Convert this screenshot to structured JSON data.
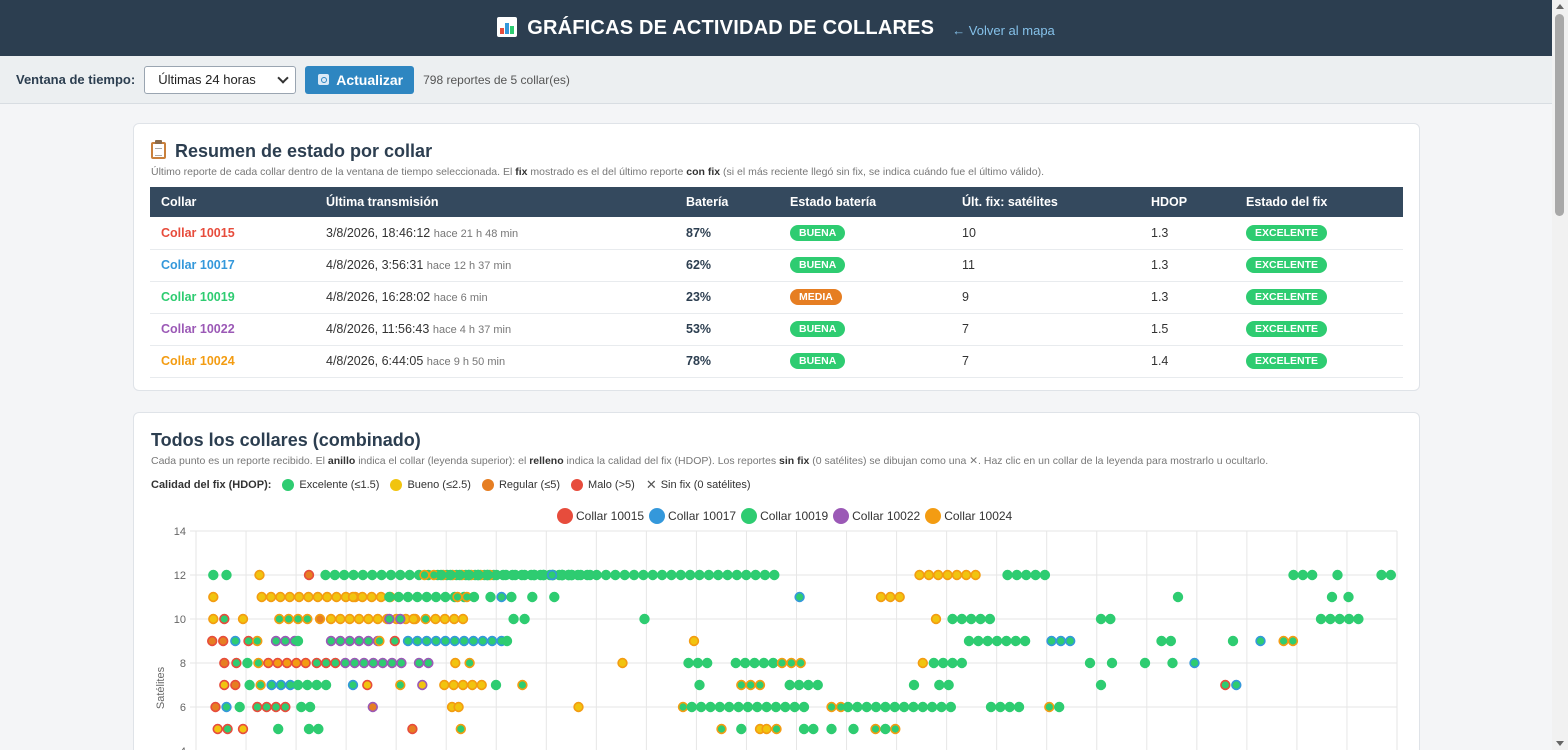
{
  "header": {
    "title": "GRÁFICAS DE ACTIVIDAD DE COLLARES",
    "back_link": "← Volver al mapa"
  },
  "toolbar": {
    "window_label": "Ventana de tiempo:",
    "window_value": "Últimas 24 horas",
    "refresh_label": "Actualizar",
    "report_count": "798 reportes de 5 collar(es)"
  },
  "summary": {
    "title": "Resumen de estado por collar",
    "desc_parts": [
      "Último reporte de cada collar dentro de la ventana de tiempo seleccionada. El ",
      "fix",
      " mostrado es el del último reporte ",
      "con fix",
      " (si el más reciente llegó sin fix, se indica cuándo fue el último válido)."
    ],
    "columns": [
      "Collar",
      "Última transmisión",
      "Batería",
      "Estado batería",
      "Últ. fix: satélites",
      "HDOP",
      "Estado del fix"
    ],
    "rows": [
      {
        "collar": "Collar 10015",
        "color": "#e74c3c",
        "time": "3/8/2026, 18:46:12",
        "ago": "hace 21 h 48 min",
        "battery": "87%",
        "battery_state": "BUENA",
        "battery_color": "#2ecc71",
        "sats": "10",
        "hdop": "1.3",
        "fix_state": "EXCELENTE"
      },
      {
        "collar": "Collar 10017",
        "color": "#3498db",
        "time": "4/8/2026, 3:56:31",
        "ago": "hace 12 h 37 min",
        "battery": "62%",
        "battery_state": "BUENA",
        "battery_color": "#2ecc71",
        "sats": "11",
        "hdop": "1.3",
        "fix_state": "EXCELENTE"
      },
      {
        "collar": "Collar 10019",
        "color": "#2ecc71",
        "time": "4/8/2026, 16:28:02",
        "ago": "hace 6 min",
        "battery": "23%",
        "battery_state": "MEDIA",
        "battery_color": "#e67e22",
        "sats": "9",
        "hdop": "1.3",
        "fix_state": "EXCELENTE"
      },
      {
        "collar": "Collar 10022",
        "color": "#9b59b6",
        "time": "4/8/2026, 11:56:43",
        "ago": "hace 4 h 37 min",
        "battery": "53%",
        "battery_state": "BUENA",
        "battery_color": "#2ecc71",
        "sats": "7",
        "hdop": "1.5",
        "fix_state": "EXCELENTE"
      },
      {
        "collar": "Collar 10024",
        "color": "#f39c12",
        "time": "4/8/2026, 6:44:05",
        "ago": "hace 9 h 50 min",
        "battery": "78%",
        "battery_state": "BUENA",
        "battery_color": "#2ecc71",
        "sats": "7",
        "hdop": "1.4",
        "fix_state": "EXCELENTE"
      }
    ],
    "fix_color": "#2ecc71"
  },
  "combined": {
    "title": "Todos los collares (combinado)",
    "desc_parts": [
      "Cada punto es un reporte recibido. El ",
      "anillo",
      " indica el collar (leyenda superior): el ",
      "relleno",
      " indica la calidad del fix (HDOP). Los reportes ",
      "sin fix",
      " (0 satélites) se dibujan como una ✕. Haz clic en un collar de la leyenda para mostrarlo u ocultarlo."
    ],
    "quality_label": "Calidad del fix (HDOP):",
    "quality_items": [
      {
        "label": "Excelente (≤1.5)",
        "color": "#2ecc71"
      },
      {
        "label": "Bueno (≤2.5)",
        "color": "#f1c40f"
      },
      {
        "label": "Regular (≤5)",
        "color": "#e67e22"
      },
      {
        "label": "Malo (>5)",
        "color": "#e74c3c"
      }
    ],
    "nofix_label": "Sin fix (0 satélites)"
  },
  "chart_data": {
    "type": "scatter",
    "ylabel": "Satélites",
    "y_ticks": [
      4,
      6,
      8,
      10,
      12,
      14
    ],
    "ylim": [
      4,
      14
    ],
    "grid": true,
    "legend_placement": "top-center",
    "series": [
      {
        "name": "Collar 10015",
        "color": "#e74c3c"
      },
      {
        "name": "Collar 10017",
        "color": "#3498db"
      },
      {
        "name": "Collar 10019",
        "color": "#2ecc71"
      },
      {
        "name": "Collar 10022",
        "color": "#9b59b6"
      },
      {
        "name": "Collar 10024",
        "color": "#f39c12"
      }
    ],
    "points": [
      {
        "t": 0.3,
        "y": 12,
        "c": "#2ecc71",
        "f": "#2ecc71"
      },
      {
        "t": 1.5,
        "y": 12,
        "c": "#2ecc71",
        "f": "#2ecc71"
      },
      {
        "t": 4.5,
        "y": 12,
        "c": "#f39c12",
        "f": "#f1c40f"
      },
      {
        "t": 9,
        "y": 12,
        "c": "#e74c3c",
        "f": "#e67e22"
      },
      {
        "t": 10.5,
        "y": 12,
        "r": 48,
        "c": "#2ecc71",
        "f": "#2ecc71"
      },
      {
        "t": 19.5,
        "y": 12,
        "r": 7,
        "c": "#f39c12",
        "f": "#2ecc71"
      },
      {
        "t": 21,
        "y": 12,
        "r": 5,
        "c": "#2ecc71",
        "f": "#2ecc71"
      },
      {
        "t": 23.5,
        "y": 12,
        "r": 13,
        "c": "#2ecc71",
        "f": "#2ecc71"
      },
      {
        "t": 29.5,
        "y": 12,
        "r": 4,
        "c": "#2ecc71",
        "f": "#2ecc71"
      },
      {
        "t": 31.1,
        "y": 12,
        "c": "#3498db",
        "f": "#2ecc71"
      },
      {
        "t": 32,
        "y": 12,
        "c": "#2ecc71",
        "f": "#2ecc71"
      },
      {
        "t": 32.6,
        "y": 12,
        "c": "#2ecc71",
        "f": "#2ecc71"
      },
      {
        "t": 64.5,
        "y": 12,
        "r": 6,
        "c": "#f39c12",
        "f": "#f1c40f"
      },
      {
        "t": 72.5,
        "y": 12,
        "r": 4,
        "c": "#2ecc71",
        "f": "#2ecc71"
      },
      {
        "t": 98.5,
        "y": 12,
        "r": 2,
        "c": "#2ecc71",
        "f": "#2ecc71"
      },
      {
        "t": 102.5,
        "y": 12,
        "c": "#2ecc71",
        "f": "#2ecc71"
      },
      {
        "t": 106.5,
        "y": 12,
        "r": 2,
        "c": "#2ecc71",
        "f": "#2ecc71"
      },
      {
        "t": 110.5,
        "y": 12,
        "r": 2,
        "c": "#2ecc71",
        "f": "#2ecc71"
      },
      {
        "t": 0.3,
        "y": 11,
        "c": "#f39c12",
        "f": "#f1c40f"
      },
      {
        "t": 4.7,
        "y": 11,
        "r": 10,
        "c": "#f39c12",
        "f": "#f1c40f"
      },
      {
        "t": 13,
        "y": 11,
        "r": 4,
        "c": "#f39c12",
        "f": "#f1c40f"
      },
      {
        "t": 16.3,
        "y": 11,
        "r": 8,
        "c": "#2ecc71",
        "f": "#2ecc71"
      },
      {
        "t": 22.5,
        "y": 11,
        "r": 1,
        "c": "#f39c12",
        "f": "#2ecc71"
      },
      {
        "t": 24,
        "y": 11,
        "c": "#2ecc71",
        "f": "#2ecc71"
      },
      {
        "t": 25.5,
        "y": 11,
        "c": "#2ecc71",
        "f": "#2ecc71"
      },
      {
        "t": 26.5,
        "y": 11,
        "c": "#3498db",
        "f": "#2ecc71"
      },
      {
        "t": 27.4,
        "y": 11,
        "c": "#2ecc71",
        "f": "#2ecc71"
      },
      {
        "t": 29.3,
        "y": 11,
        "c": "#2ecc71",
        "f": "#2ecc71"
      },
      {
        "t": 31.3,
        "y": 11,
        "c": "#2ecc71",
        "f": "#2ecc71"
      },
      {
        "t": 53.6,
        "y": 11,
        "c": "#3498db",
        "f": "#2ecc71"
      },
      {
        "t": 61,
        "y": 11,
        "r": 2,
        "c": "#f39c12",
        "f": "#f1c40f"
      },
      {
        "t": 88,
        "y": 11,
        "c": "#2ecc71",
        "f": "#2ecc71"
      },
      {
        "t": 102,
        "y": 11,
        "c": "#2ecc71",
        "f": "#2ecc71"
      },
      {
        "t": 103.5,
        "y": 11,
        "c": "#2ecc71",
        "f": "#2ecc71"
      },
      {
        "t": 111,
        "y": 11,
        "c": "#2ecc71",
        "f": "#2ecc71"
      },
      {
        "t": 0.3,
        "y": 10,
        "c": "#f39c12",
        "f": "#f1c40f"
      },
      {
        "t": 1.3,
        "y": 10,
        "c": "#e74c3c",
        "f": "#2ecc71"
      },
      {
        "t": 3,
        "y": 10,
        "c": "#f39c12",
        "f": "#f1c40f"
      },
      {
        "t": 6.3,
        "y": 10,
        "r": 3,
        "c": "#f39c12",
        "f": "#2ecc71"
      },
      {
        "t": 10,
        "y": 10,
        "c": "#f39c12",
        "f": "#e67e22"
      },
      {
        "t": 11,
        "y": 10,
        "r": 9,
        "c": "#f39c12",
        "f": "#f1c40f"
      },
      {
        "t": 16.3,
        "y": 10,
        "c": "#9b59b6",
        "f": "#2ecc71"
      },
      {
        "t": 17.3,
        "y": 10,
        "c": "#9b59b6",
        "f": "#2ecc71"
      },
      {
        "t": 18.5,
        "y": 10,
        "c": "#f39c12",
        "f": "#f1c40f"
      },
      {
        "t": 19.6,
        "y": 10,
        "c": "#f39c12",
        "f": "#2ecc71"
      },
      {
        "t": 20.5,
        "y": 10,
        "r": 2,
        "c": "#f39c12",
        "f": "#f1c40f"
      },
      {
        "t": 23,
        "y": 10,
        "c": "#f39c12",
        "f": "#f1c40f"
      },
      {
        "t": 27.6,
        "y": 10,
        "c": "#2ecc71",
        "f": "#2ecc71"
      },
      {
        "t": 28.6,
        "y": 10,
        "c": "#2ecc71",
        "f": "#2ecc71"
      },
      {
        "t": 39.5,
        "y": 10,
        "c": "#2ecc71",
        "f": "#2ecc71"
      },
      {
        "t": 66,
        "y": 10,
        "c": "#f39c12",
        "f": "#f1c40f"
      },
      {
        "t": 67.5,
        "y": 10,
        "r": 4,
        "c": "#2ecc71",
        "f": "#2ecc71"
      },
      {
        "t": 81,
        "y": 10,
        "r": 1,
        "c": "#2ecc71",
        "f": "#2ecc71"
      },
      {
        "t": 101,
        "y": 10,
        "r": 4,
        "c": "#2ecc71",
        "f": "#2ecc71"
      },
      {
        "t": 0.2,
        "y": 9,
        "c": "#e74c3c",
        "f": "#e67e22"
      },
      {
        "t": 1.2,
        "y": 9,
        "c": "#e74c3c",
        "f": "#e67e22"
      },
      {
        "t": 2.3,
        "y": 9,
        "c": "#3498db",
        "f": "#2ecc71"
      },
      {
        "t": 3.5,
        "y": 9,
        "c": "#e74c3c",
        "f": "#2ecc71"
      },
      {
        "t": 4.3,
        "y": 9,
        "c": "#f39c12",
        "f": "#2ecc71"
      },
      {
        "t": 6,
        "y": 9,
        "r": 2,
        "c": "#9b59b6",
        "f": "#2ecc71"
      },
      {
        "t": 8,
        "y": 9,
        "c": "#2ecc71",
        "f": "#2ecc71"
      },
      {
        "t": 11,
        "y": 9,
        "r": 5,
        "c": "#9b59b6",
        "f": "#2ecc71"
      },
      {
        "t": 15.4,
        "y": 9,
        "c": "#f39c12",
        "f": "#2ecc71"
      },
      {
        "t": 16.8,
        "y": 9,
        "c": "#e74c3c",
        "f": "#2ecc71"
      },
      {
        "t": 18,
        "y": 9,
        "r": 10,
        "c": "#3498db",
        "f": "#2ecc71"
      },
      {
        "t": 27,
        "y": 9,
        "c": "#2ecc71",
        "f": "#2ecc71"
      },
      {
        "t": 44,
        "y": 9,
        "c": "#f39c12",
        "f": "#f1c40f"
      },
      {
        "t": 69,
        "y": 9,
        "r": 6,
        "c": "#2ecc71",
        "f": "#2ecc71"
      },
      {
        "t": 76.5,
        "y": 9,
        "r": 2,
        "c": "#3498db",
        "f": "#2ecc71"
      },
      {
        "t": 86.5,
        "y": 9,
        "r": 1,
        "c": "#2ecc71",
        "f": "#2ecc71"
      },
      {
        "t": 93,
        "y": 9,
        "c": "#2ecc71",
        "f": "#2ecc71"
      },
      {
        "t": 95.5,
        "y": 9,
        "c": "#3498db",
        "f": "#2ecc71"
      },
      {
        "t": 97.6,
        "y": 9,
        "r": 1,
        "c": "#f39c12",
        "f": "#2ecc71"
      },
      {
        "t": 112,
        "y": 9,
        "c": "#2ecc71",
        "f": "#2ecc71"
      },
      {
        "t": 1.3,
        "y": 8,
        "c": "#e74c3c",
        "f": "#e67e22"
      },
      {
        "t": 2.4,
        "y": 8,
        "c": "#e74c3c",
        "f": "#2ecc71"
      },
      {
        "t": 3.4,
        "y": 8,
        "c": "#2ecc71",
        "f": "#2ecc71"
      },
      {
        "t": 4.4,
        "y": 8,
        "c": "#f39c12",
        "f": "#2ecc71"
      },
      {
        "t": 5.3,
        "y": 8,
        "r": 4,
        "c": "#e74c3c",
        "f": "#f39c12"
      },
      {
        "t": 9.7,
        "y": 8,
        "r": 2,
        "c": "#e74c3c",
        "f": "#2ecc71"
      },
      {
        "t": 12.3,
        "y": 8,
        "r": 6,
        "c": "#9b59b6",
        "f": "#2ecc71"
      },
      {
        "t": 19,
        "y": 8,
        "r": 1,
        "c": "#9b59b6",
        "f": "#2ecc71"
      },
      {
        "t": 22.3,
        "y": 8,
        "c": "#f39c12",
        "f": "#f1c40f"
      },
      {
        "t": 23.6,
        "y": 8,
        "c": "#f39c12",
        "f": "#2ecc71"
      },
      {
        "t": 37.5,
        "y": 8,
        "c": "#f39c12",
        "f": "#f1c40f"
      },
      {
        "t": 43.5,
        "y": 8,
        "r": 2,
        "c": "#2ecc71",
        "f": "#2ecc71"
      },
      {
        "t": 47.8,
        "y": 8,
        "r": 4,
        "c": "#2ecc71",
        "f": "#2ecc71"
      },
      {
        "t": 52,
        "y": 8,
        "r": 2,
        "c": "#f39c12",
        "f": "#2ecc71"
      },
      {
        "t": 64.8,
        "y": 8,
        "c": "#f39c12",
        "f": "#f1c40f"
      },
      {
        "t": 65.8,
        "y": 8,
        "r": 3,
        "c": "#2ecc71",
        "f": "#2ecc71"
      },
      {
        "t": 80,
        "y": 8,
        "c": "#2ecc71",
        "f": "#2ecc71"
      },
      {
        "t": 82,
        "y": 8,
        "c": "#2ecc71",
        "f": "#2ecc71"
      },
      {
        "t": 85,
        "y": 8,
        "c": "#2ecc71",
        "f": "#2ecc71"
      },
      {
        "t": 87.5,
        "y": 8,
        "c": "#2ecc71",
        "f": "#2ecc71"
      },
      {
        "t": 89.5,
        "y": 8,
        "c": "#3498db",
        "f": "#2ecc71"
      },
      {
        "t": 111.5,
        "y": 8,
        "c": "#e74c3c",
        "f": "#e67e22"
      },
      {
        "t": 1.3,
        "y": 7,
        "c": "#e74c3c",
        "f": "#f1c40f"
      },
      {
        "t": 2.3,
        "y": 7,
        "c": "#e74c3c",
        "f": "#e67e22"
      },
      {
        "t": 3.6,
        "y": 7,
        "c": "#2ecc71",
        "f": "#2ecc71"
      },
      {
        "t": 4.6,
        "y": 7,
        "c": "#f39c12",
        "f": "#2ecc71"
      },
      {
        "t": 5.6,
        "y": 7,
        "r": 2,
        "c": "#3498db",
        "f": "#2ecc71"
      },
      {
        "t": 8,
        "y": 7,
        "r": 3,
        "c": "#2ecc71",
        "f": "#2ecc71"
      },
      {
        "t": 13,
        "y": 7,
        "c": "#3498db",
        "f": "#2ecc71"
      },
      {
        "t": 14.3,
        "y": 7,
        "c": "#e74c3c",
        "f": "#f1c40f"
      },
      {
        "t": 17.3,
        "y": 7,
        "c": "#f39c12",
        "f": "#2ecc71"
      },
      {
        "t": 19.3,
        "y": 7,
        "c": "#9b59b6",
        "f": "#f1c40f"
      },
      {
        "t": 21.3,
        "y": 7,
        "r": 4,
        "c": "#f39c12",
        "f": "#f1c40f"
      },
      {
        "t": 26,
        "y": 7,
        "c": "#2ecc71",
        "f": "#2ecc71"
      },
      {
        "t": 28.4,
        "y": 7,
        "c": "#f39c12",
        "f": "#2ecc71"
      },
      {
        "t": 44.5,
        "y": 7,
        "c": "#2ecc71",
        "f": "#2ecc71"
      },
      {
        "t": 48.3,
        "y": 7,
        "r": 2,
        "c": "#f39c12",
        "f": "#2ecc71"
      },
      {
        "t": 52.7,
        "y": 7,
        "r": 3,
        "c": "#2ecc71",
        "f": "#2ecc71"
      },
      {
        "t": 64,
        "y": 7,
        "c": "#2ecc71",
        "f": "#2ecc71"
      },
      {
        "t": 66.3,
        "y": 7,
        "r": 1,
        "c": "#2ecc71",
        "f": "#2ecc71"
      },
      {
        "t": 81,
        "y": 7,
        "c": "#2ecc71",
        "f": "#2ecc71"
      },
      {
        "t": 92.3,
        "y": 7,
        "c": "#e74c3c",
        "f": "#2ecc71"
      },
      {
        "t": 93.3,
        "y": 7,
        "c": "#3498db",
        "f": "#2ecc71"
      },
      {
        "t": 0.5,
        "y": 6,
        "c": "#e74c3c",
        "f": "#e67e22"
      },
      {
        "t": 1.5,
        "y": 6,
        "c": "#3498db",
        "f": "#2ecc71"
      },
      {
        "t": 2.7,
        "y": 6,
        "c": "#2ecc71",
        "f": "#2ecc71"
      },
      {
        "t": 4.3,
        "y": 6,
        "r": 3,
        "c": "#e74c3c",
        "f": "#2ecc71"
      },
      {
        "t": 8.3,
        "y": 6,
        "c": "#2ecc71",
        "f": "#2ecc71"
      },
      {
        "t": 9.1,
        "y": 6,
        "c": "#2ecc71",
        "f": "#2ecc71"
      },
      {
        "t": 14.8,
        "y": 6,
        "c": "#9b59b6",
        "f": "#e67e22"
      },
      {
        "t": 22,
        "y": 6,
        "c": "#f39c12",
        "f": "#f1c40f"
      },
      {
        "t": 22.6,
        "y": 6,
        "c": "#f39c12",
        "f": "#f1c40f"
      },
      {
        "t": 33.5,
        "y": 6,
        "c": "#f39c12",
        "f": "#f1c40f"
      },
      {
        "t": 43,
        "y": 6,
        "c": "#f39c12",
        "f": "#2ecc71"
      },
      {
        "t": 43.8,
        "y": 6,
        "r": 12,
        "c": "#2ecc71",
        "f": "#2ecc71"
      },
      {
        "t": 56.5,
        "y": 6,
        "r": 1,
        "c": "#f39c12",
        "f": "#2ecc71"
      },
      {
        "t": 58,
        "y": 6,
        "r": 11,
        "c": "#2ecc71",
        "f": "#2ecc71"
      },
      {
        "t": 71,
        "y": 6,
        "r": 3,
        "c": "#2ecc71",
        "f": "#2ecc71"
      },
      {
        "t": 76.3,
        "y": 6,
        "c": "#f39c12",
        "f": "#2ecc71"
      },
      {
        "t": 77.2,
        "y": 6,
        "c": "#2ecc71",
        "f": "#2ecc71"
      },
      {
        "t": 0.7,
        "y": 5,
        "c": "#e74c3c",
        "f": "#f1c40f"
      },
      {
        "t": 1.6,
        "y": 5,
        "c": "#e74c3c",
        "f": "#2ecc71"
      },
      {
        "t": 3,
        "y": 5,
        "c": "#e74c3c",
        "f": "#f1c40f"
      },
      {
        "t": 6.2,
        "y": 5,
        "c": "#2ecc71",
        "f": "#2ecc71"
      },
      {
        "t": 9,
        "y": 5,
        "r": 1,
        "c": "#2ecc71",
        "f": "#2ecc71"
      },
      {
        "t": 18.4,
        "y": 5,
        "c": "#e74c3c",
        "f": "#e67e22"
      },
      {
        "t": 22.8,
        "y": 5,
        "c": "#f39c12",
        "f": "#2ecc71"
      },
      {
        "t": 46.5,
        "y": 5,
        "c": "#f39c12",
        "f": "#2ecc71"
      },
      {
        "t": 48.3,
        "y": 5,
        "c": "#2ecc71",
        "f": "#2ecc71"
      },
      {
        "t": 50,
        "y": 5,
        "c": "#f39c12",
        "f": "#f1c40f"
      },
      {
        "t": 50.6,
        "y": 5,
        "c": "#f39c12",
        "f": "#f1c40f"
      },
      {
        "t": 51.5,
        "y": 5,
        "c": "#f39c12",
        "f": "#2ecc71"
      },
      {
        "t": 54,
        "y": 5,
        "r": 1,
        "c": "#2ecc71",
        "f": "#2ecc71"
      },
      {
        "t": 56.5,
        "y": 5,
        "c": "#2ecc71",
        "f": "#2ecc71"
      },
      {
        "t": 58.5,
        "y": 5,
        "c": "#2ecc71",
        "f": "#2ecc71"
      },
      {
        "t": 60.5,
        "y": 5,
        "c": "#f39c12",
        "f": "#2ecc71"
      },
      {
        "t": 61.4,
        "y": 5,
        "c": "#2ecc71",
        "f": "#2ecc71"
      },
      {
        "t": 62.3,
        "y": 5,
        "c": "#f39c12",
        "f": "#2ecc71"
      }
    ],
    "x_grid_count": 24
  }
}
